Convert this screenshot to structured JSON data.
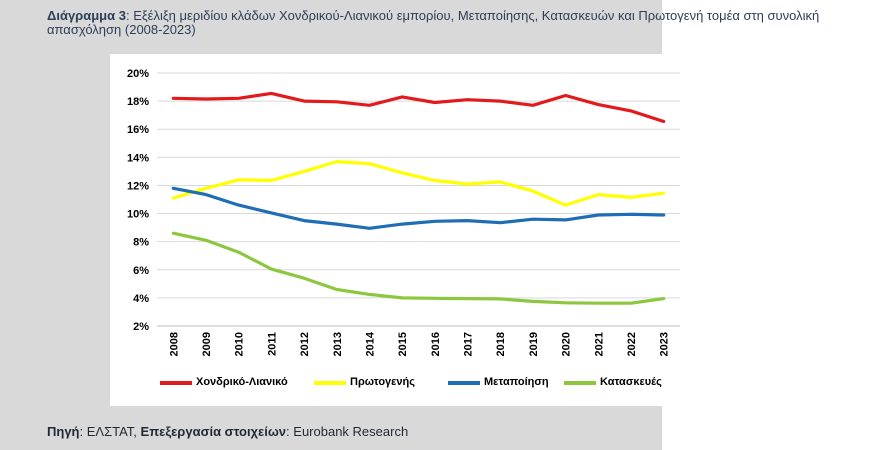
{
  "header": {
    "label": "Διάγραμμα 3",
    "colon": ":",
    "title": " Εξέλιξη μεριδίου κλάδων Χονδρικού-Λιανικού εμπορίου, Μεταποίησης, Κατασκευών και Πρωτογενή τομέα στη συνολική απασχόληση (2008-2023)"
  },
  "source": {
    "label": "Πηγή",
    "text1": ": ΕΛΣΤΑΤ, ",
    "label2": "Επεξεργασία στοιχείων",
    "text2": ": Eurobank Research"
  },
  "chart_data": {
    "type": "line",
    "x": [
      "2008",
      "2009",
      "2010",
      "2011",
      "2012",
      "2013",
      "2014",
      "2015",
      "2016",
      "2017",
      "2018",
      "2019",
      "2020",
      "2021",
      "2022",
      "2023"
    ],
    "ylim": [
      2,
      20
    ],
    "yticks": [
      "2%",
      "4%",
      "6%",
      "8%",
      "10%",
      "12%",
      "14%",
      "16%",
      "18%",
      "20%"
    ],
    "grid": true,
    "legend_position": "bottom",
    "series": [
      {
        "name": "Χονδρικό-Λιανικό",
        "color": "#e31a1c",
        "values": [
          18.2,
          18.15,
          18.2,
          18.55,
          18.0,
          17.95,
          17.7,
          18.3,
          17.9,
          18.1,
          18.0,
          17.7,
          18.4,
          17.75,
          17.3,
          16.55
        ]
      },
      {
        "name": "Πρωτογενής",
        "color": "#ffff00",
        "values": [
          11.1,
          11.8,
          12.4,
          12.35,
          13.0,
          13.7,
          13.55,
          12.9,
          12.35,
          12.1,
          12.25,
          11.6,
          10.6,
          11.35,
          11.15,
          11.45
        ]
      },
      {
        "name": "Μεταποίηση",
        "color": "#1f6eb5",
        "values": [
          11.8,
          11.35,
          10.6,
          10.05,
          9.5,
          9.25,
          8.95,
          9.25,
          9.45,
          9.5,
          9.35,
          9.6,
          9.55,
          9.9,
          9.95,
          9.9
        ]
      },
      {
        "name": "Κατασκευές",
        "color": "#8dc63f",
        "values": [
          8.6,
          8.1,
          7.25,
          6.05,
          5.4,
          4.6,
          4.25,
          4.0,
          3.97,
          3.95,
          3.93,
          3.75,
          3.65,
          3.62,
          3.62,
          3.95
        ]
      }
    ]
  }
}
